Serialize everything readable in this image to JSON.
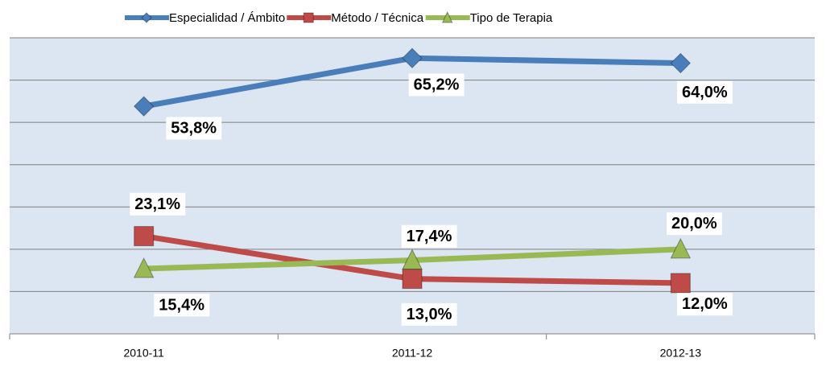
{
  "chart_data": {
    "type": "line",
    "categories": [
      "2010-11",
      "2011-12",
      "2012-13"
    ],
    "series": [
      {
        "name": "Especialidad / Ámbito",
        "color": "#4a7ebb",
        "values": [
          53.8,
          65.2,
          64.0
        ],
        "value_labels": [
          "53,8%",
          "65,2%",
          "64,0%"
        ]
      },
      {
        "name": "Método / Técnica",
        "color": "#be4b48",
        "values": [
          23.1,
          13.0,
          12.0
        ],
        "value_labels": [
          "23,1%",
          "13,0%",
          "12,0%"
        ]
      },
      {
        "name": "Tipo de Terapia",
        "color": "#98b954",
        "values": [
          15.4,
          17.4,
          20.0
        ],
        "value_labels": [
          "15,4%",
          "17,4%",
          "20,0%"
        ]
      }
    ],
    "ylim": [
      0,
      70
    ],
    "yticks": [
      0,
      10,
      20,
      30,
      40,
      50,
      60,
      70
    ],
    "grid": true,
    "legend": "top"
  }
}
